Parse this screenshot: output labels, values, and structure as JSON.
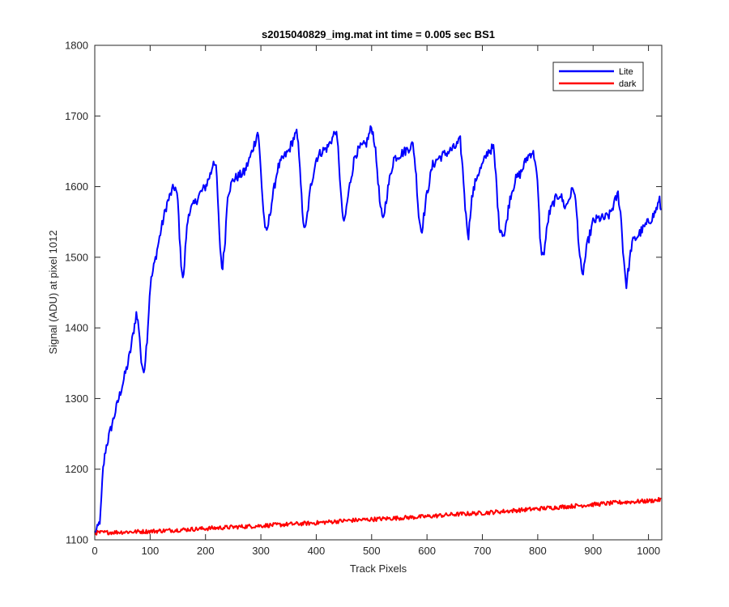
{
  "chart_data": {
    "type": "line",
    "title": "s2015040829_img.mat int time = 0.005 sec   BS1",
    "xlabel": "Track Pixels",
    "ylabel": "Signal (ADU) at pixel 1012",
    "xlim": [
      0,
      1024
    ],
    "ylim": [
      1100,
      1800
    ],
    "xticks": [
      0,
      100,
      200,
      300,
      400,
      500,
      600,
      700,
      800,
      900,
      1000
    ],
    "yticks": [
      1100,
      1200,
      1300,
      1400,
      1500,
      1600,
      1700,
      1800
    ],
    "grid": false,
    "legend_position": "top-right",
    "series": [
      {
        "name": "Lite",
        "color": "#0000ff",
        "x": [
          0,
          5,
          10,
          15,
          20,
          25,
          30,
          40,
          50,
          60,
          65,
          70,
          75,
          80,
          85,
          90,
          95,
          100,
          110,
          120,
          130,
          140,
          145,
          150,
          155,
          160,
          165,
          170,
          180,
          190,
          200,
          210,
          215,
          220,
          225,
          230,
          235,
          240,
          250,
          260,
          270,
          280,
          290,
          295,
          300,
          305,
          310,
          320,
          330,
          340,
          350,
          360,
          365,
          370,
          375,
          380,
          390,
          400,
          410,
          420,
          430,
          435,
          440,
          445,
          450,
          460,
          470,
          480,
          490,
          500,
          505,
          510,
          515,
          520,
          530,
          540,
          550,
          560,
          575,
          580,
          585,
          590,
          600,
          610,
          620,
          630,
          640,
          650,
          660,
          665,
          670,
          675,
          680,
          690,
          700,
          710,
          720,
          725,
          730,
          740,
          750,
          760,
          770,
          780,
          790,
          795,
          800,
          805,
          810,
          820,
          830,
          840,
          850,
          860,
          865,
          870,
          875,
          880,
          890,
          900,
          910,
          920,
          930,
          940,
          945,
          950,
          955,
          960,
          970,
          980,
          990,
          1000,
          1010,
          1015,
          1020,
          1024
        ],
        "y": [
          1110,
          1115,
          1130,
          1200,
          1230,
          1245,
          1260,
          1290,
          1320,
          1350,
          1370,
          1395,
          1420,
          1400,
          1340,
          1345,
          1390,
          1460,
          1500,
          1540,
          1575,
          1595,
          1600,
          1580,
          1500,
          1465,
          1530,
          1565,
          1575,
          1590,
          1600,
          1620,
          1640,
          1620,
          1530,
          1480,
          1520,
          1590,
          1610,
          1615,
          1620,
          1640,
          1665,
          1680,
          1620,
          1560,
          1530,
          1580,
          1625,
          1640,
          1650,
          1670,
          1675,
          1640,
          1560,
          1535,
          1600,
          1640,
          1650,
          1655,
          1670,
          1680,
          1650,
          1580,
          1545,
          1600,
          1645,
          1655,
          1660,
          1685,
          1665,
          1625,
          1575,
          1550,
          1600,
          1640,
          1645,
          1650,
          1660,
          1620,
          1560,
          1535,
          1590,
          1630,
          1640,
          1645,
          1650,
          1655,
          1665,
          1620,
          1560,
          1530,
          1580,
          1615,
          1630,
          1650,
          1655,
          1610,
          1545,
          1530,
          1585,
          1610,
          1620,
          1640,
          1650,
          1640,
          1600,
          1515,
          1500,
          1560,
          1580,
          1590,
          1570,
          1590,
          1600,
          1565,
          1510,
          1470,
          1520,
          1550,
          1555,
          1555,
          1560,
          1580,
          1590,
          1560,
          1500,
          1460,
          1520,
          1530,
          1540,
          1550,
          1560,
          1570,
          1580,
          1560
        ]
      },
      {
        "name": "dark",
        "color": "#ff0000",
        "x": [
          0,
          50,
          100,
          150,
          200,
          250,
          300,
          350,
          400,
          450,
          500,
          550,
          600,
          650,
          700,
          750,
          800,
          850,
          900,
          950,
          1000,
          1024
        ],
        "y": [
          1110,
          1111,
          1112,
          1114,
          1116,
          1118,
          1120,
          1122,
          1124,
          1127,
          1129,
          1131,
          1133,
          1136,
          1138,
          1141,
          1144,
          1147,
          1150,
          1153,
          1155,
          1157
        ]
      }
    ]
  }
}
